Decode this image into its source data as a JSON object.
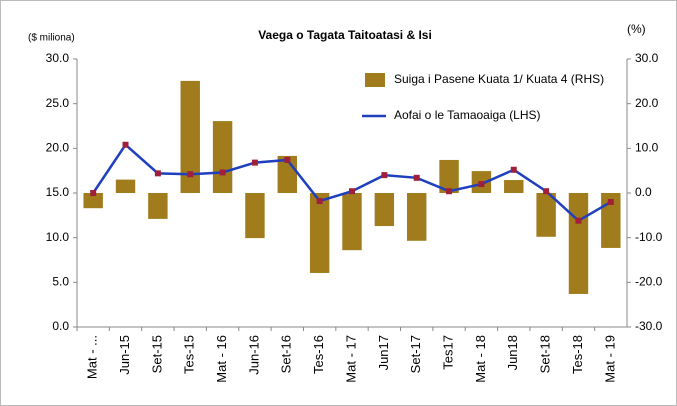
{
  "chart_data": {
    "type": "bar-line",
    "title": "Vaega o Tagata Taitoatasi & Isi",
    "ylabel": "($ miliona)",
    "y2label": "(%)",
    "categories": [
      "Mat - ...",
      "Jun-15",
      "Set-15",
      "Tes-15",
      "Mat - 16",
      "Jun-16",
      "Set-16",
      "Tes-16",
      "Mat - 17",
      "Jun17",
      "Set-17",
      "Tes17",
      "Mat - 18",
      "Jun18",
      "Set-18",
      "Tes-18",
      "Mat - 19"
    ],
    "series": [
      {
        "name": "Suiga i Pasene Kuata 1/ Kuata 4 (RHS)",
        "type": "bar",
        "axis": "y2",
        "color": "#a07c1c",
        "values": [
          -3.4,
          3.0,
          -5.8,
          25.1,
          16.1,
          -10.1,
          8.3,
          -17.9,
          -12.8,
          -7.4,
          -10.7,
          7.4,
          4.9,
          2.9,
          -9.8,
          -22.6,
          -12.3
        ]
      },
      {
        "name": "Aofai o le Tamaoaiga (LHS)",
        "type": "line",
        "axis": "y",
        "color": "#1f3fbf",
        "marker_color": "#a0203c",
        "values": [
          15.0,
          20.4,
          17.2,
          17.1,
          17.3,
          18.4,
          18.7,
          14.1,
          15.2,
          17.0,
          16.7,
          15.2,
          16.0,
          17.6,
          15.2,
          11.9,
          14.0
        ]
      }
    ],
    "ylim": [
      0,
      30
    ],
    "yticks": [
      {
        "value": 0,
        "label": "0.0"
      },
      {
        "value": 5,
        "label": "5.0"
      },
      {
        "value": 10,
        "label": "10.0"
      },
      {
        "value": 15,
        "label": "15.0"
      },
      {
        "value": 20,
        "label": "20.0"
      },
      {
        "value": 25,
        "label": "25.0"
      },
      {
        "value": 30,
        "label": "30.0"
      }
    ],
    "y2lim": [
      -30,
      30
    ],
    "y2ticks": [
      {
        "value": -30,
        "label": "-30.0"
      },
      {
        "value": -20,
        "label": "-20.0"
      },
      {
        "value": -10,
        "label": "-10.0"
      },
      {
        "value": 0,
        "label": "0.0"
      },
      {
        "value": 10,
        "label": "10.0"
      },
      {
        "value": 20,
        "label": "20.0"
      },
      {
        "value": 30,
        "label": "30.0"
      }
    ],
    "grid": false
  }
}
